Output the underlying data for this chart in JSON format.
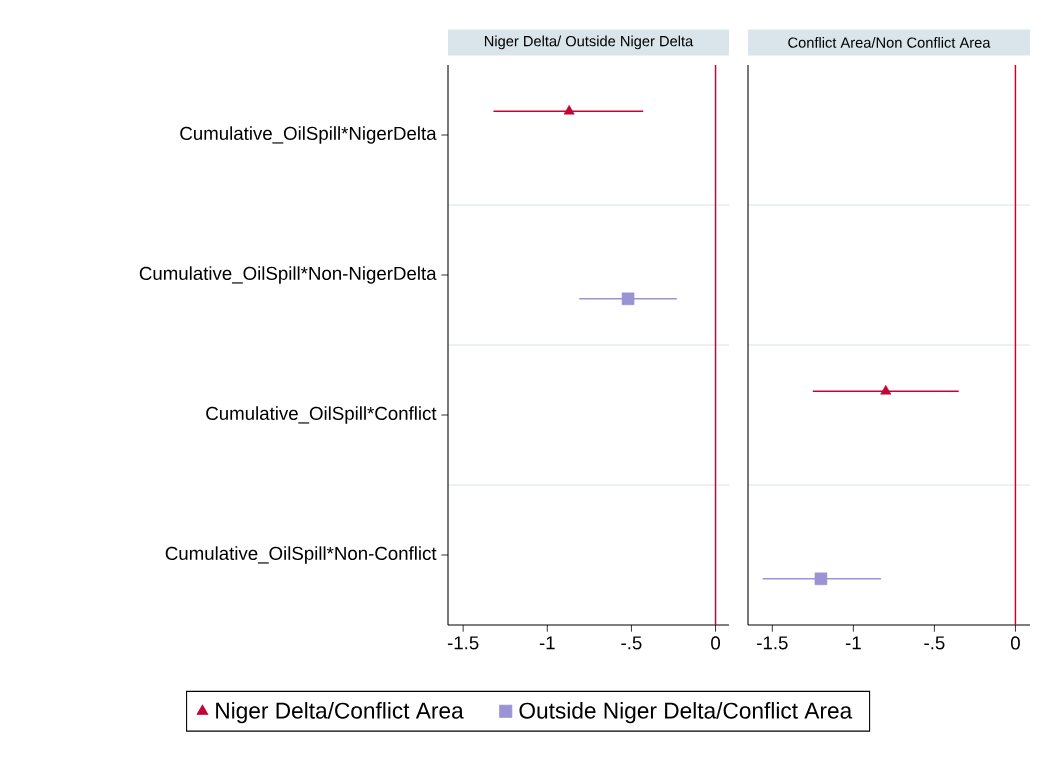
{
  "chart_data": [
    {
      "type": "scatter",
      "orientation": "horizontal",
      "title": "Niger Delta/ Outside Niger Delta",
      "categories": [
        "Cumulative_OilSpill*NigerDelta",
        "Cumulative_OilSpill*Non-NigerDelta",
        "Cumulative_OilSpill*Conflict",
        "Cumulative_OilSpill*Non-Conflict"
      ],
      "series": [
        {
          "name": "Niger Delta/Conflict Area",
          "color": "#c10534",
          "marker": "triangle",
          "values": [
            -0.87,
            null,
            null,
            null
          ],
          "errors": [
            [
              -1.32,
              -0.43
            ],
            null,
            null,
            null
          ]
        },
        {
          "name": "Outside Niger Delta/Conflict Area",
          "color": "#9a94d4",
          "marker": "square",
          "values": [
            null,
            -0.52,
            null,
            null
          ],
          "errors": [
            null,
            [
              -0.81,
              -0.23
            ],
            null,
            null
          ]
        }
      ],
      "xlim": [
        -1.59,
        0.08
      ],
      "xticks": [
        -1.5,
        -1,
        {
          "value": -0.5,
          "label": "-.5"
        },
        0
      ],
      "ref_lines": [
        {
          "axis": "x",
          "value": 0,
          "color": "#c10534"
        }
      ],
      "grid": "y",
      "legend": "bottom"
    },
    {
      "type": "scatter",
      "orientation": "horizontal",
      "title": "Conflict Area/Non Conflict Area",
      "categories": [
        null,
        null,
        null,
        null
      ],
      "series": [
        {
          "color": "#c10534",
          "marker": "triangle",
          "values": [
            null,
            null,
            -0.8,
            null
          ],
          "errors": [
            null,
            null,
            [
              -1.25,
              -0.35
            ],
            null
          ]
        },
        {
          "color": "#9a94d4",
          "marker": "square",
          "values": [
            null,
            null,
            null,
            -1.2
          ],
          "errors": [
            null,
            null,
            null,
            [
              -1.56,
              -0.83
            ]
          ]
        }
      ],
      "xlim": [
        -1.65,
        0.09
      ],
      "xticks": [
        -1.5,
        -1,
        {
          "value": -0.5,
          "label": "-.5"
        },
        0
      ],
      "ref_lines": [
        {
          "axis": "x",
          "value": 0,
          "color": "#c10534"
        }
      ],
      "grid": "y",
      "tick_labels": "x"
    }
  ]
}
